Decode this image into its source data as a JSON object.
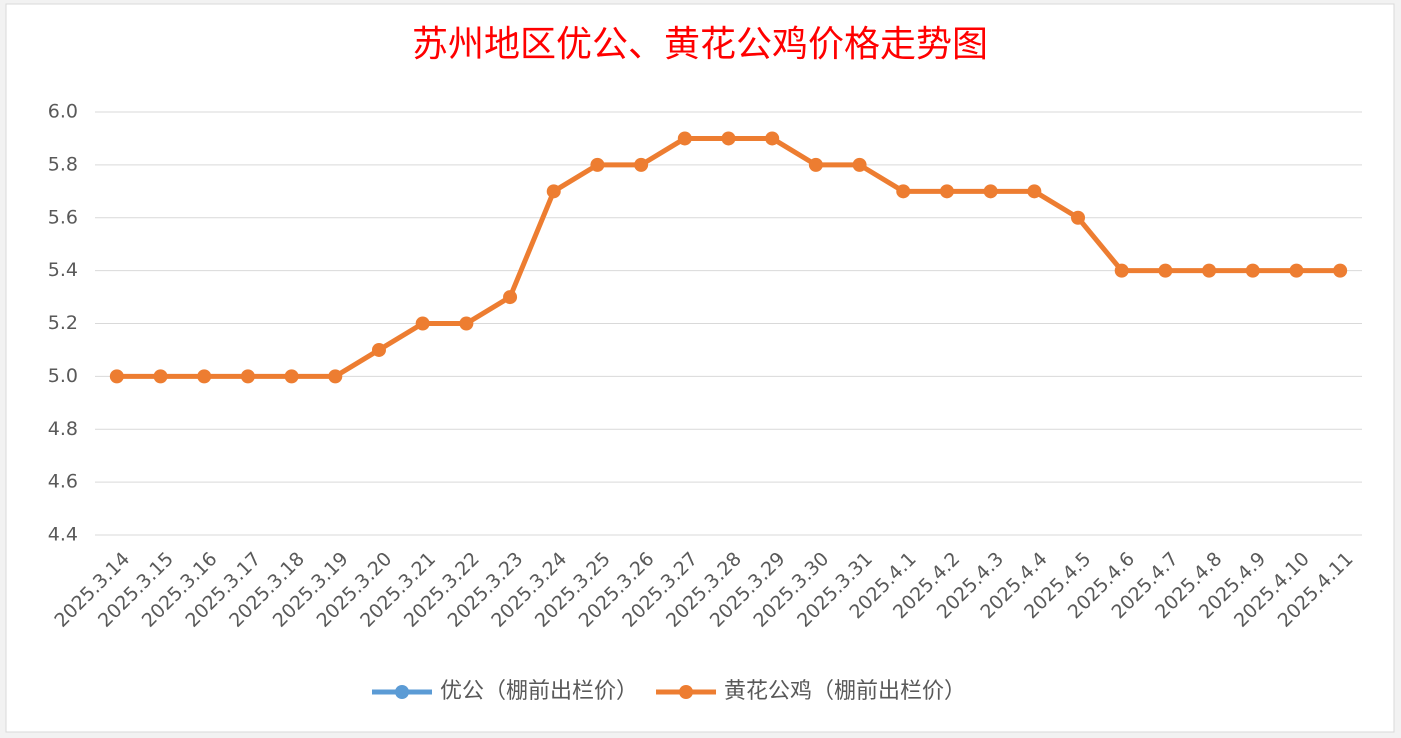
{
  "chart_data": {
    "type": "line",
    "title": "苏州地区优公、黄花公鸡价格走势图",
    "categories": [
      "2025.3.14",
      "2025.3.15",
      "2025.3.16",
      "2025.3.17",
      "2025.3.18",
      "2025.3.19",
      "2025.3.20",
      "2025.3.21",
      "2025.3.22",
      "2025.3.23",
      "2025.3.24",
      "2025.3.25",
      "2025.3.26",
      "2025.3.27",
      "2025.3.28",
      "2025.3.29",
      "2025.3.30",
      "2025.3.31",
      "2025.4.1",
      "2025.4.2",
      "2025.4.3",
      "2025.4.4",
      "2025.4.5",
      "2025.4.6",
      "2025.4.7",
      "2025.4.8",
      "2025.4.9",
      "2025.4.10",
      "2025.4.11"
    ],
    "series": [
      {
        "name": "优公（棚前出栏价）",
        "color": "#5b9bd5",
        "values": [
          null,
          null,
          null,
          null,
          null,
          null,
          null,
          null,
          null,
          null,
          null,
          null,
          null,
          null,
          null,
          null,
          null,
          null,
          null,
          null,
          null,
          null,
          null,
          null,
          null,
          null,
          null,
          null,
          null
        ]
      },
      {
        "name": "黄花公鸡（棚前出栏价）",
        "color": "#ed7d31",
        "values": [
          5.0,
          5.0,
          5.0,
          5.0,
          5.0,
          5.0,
          5.1,
          5.2,
          5.2,
          5.3,
          5.7,
          5.8,
          5.8,
          5.9,
          5.9,
          5.9,
          5.8,
          5.8,
          5.7,
          5.7,
          5.7,
          5.7,
          5.6,
          5.4,
          5.4,
          5.4,
          5.4,
          5.4,
          5.4
        ]
      }
    ],
    "ylim": [
      4.4,
      6.0
    ],
    "yticks": [
      {
        "value": 4.4,
        "label": "4.4"
      },
      {
        "value": 4.6,
        "label": "4.6"
      },
      {
        "value": 4.8,
        "label": "4.8"
      },
      {
        "value": 5.0,
        "label": "5.0"
      },
      {
        "value": 5.2,
        "label": "5.2"
      },
      {
        "value": 5.4,
        "label": "5.4"
      },
      {
        "value": 5.6,
        "label": "5.6"
      },
      {
        "value": 5.8,
        "label": "5.8"
      },
      {
        "value": 6.0,
        "label": "6.0"
      }
    ],
    "grid": true,
    "legend": "bottom"
  }
}
